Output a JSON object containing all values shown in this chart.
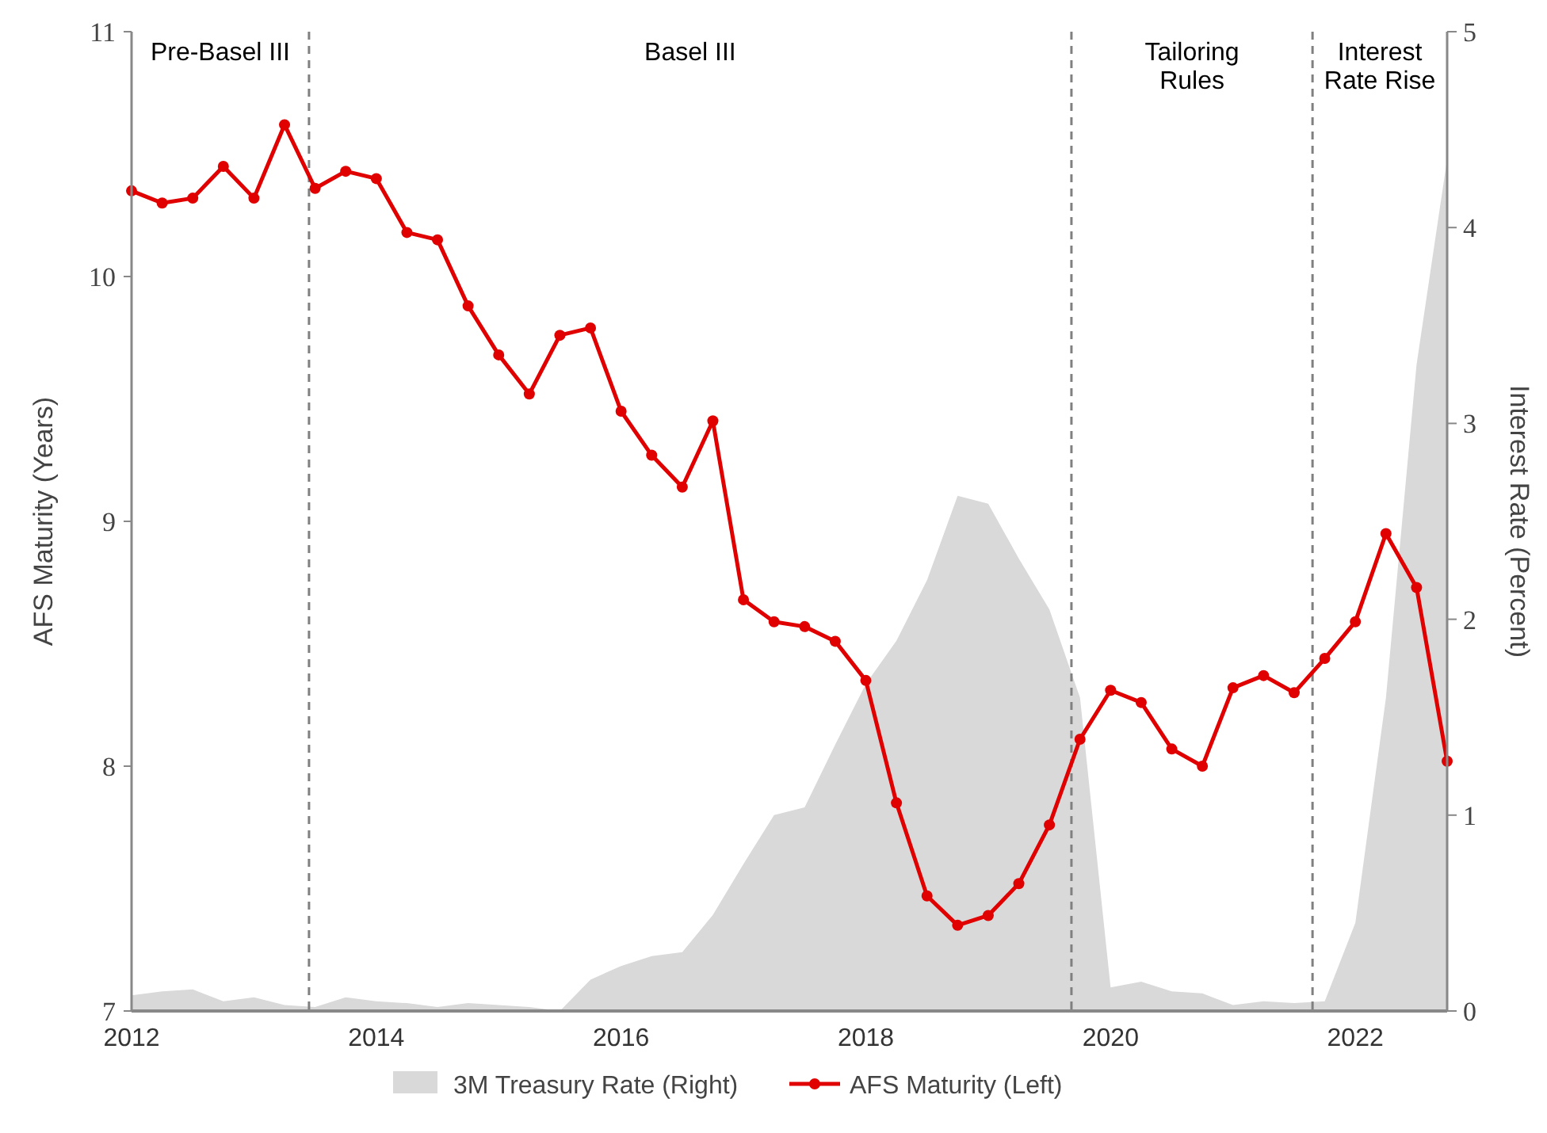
{
  "chart_data": {
    "type": "line",
    "ylabel": "AFS Maturity (Years)",
    "y2label": "Interest Rate (Percent)",
    "x": [
      2012,
      2012.25,
      2012.5,
      2012.75,
      2013,
      2013.25,
      2013.5,
      2013.75,
      2014,
      2014.25,
      2014.5,
      2014.75,
      2015,
      2015.25,
      2015.5,
      2015.75,
      2016,
      2016.25,
      2016.5,
      2016.75,
      2017,
      2017.25,
      2017.5,
      2017.75,
      2018,
      2018.25,
      2018.5,
      2018.75,
      2019,
      2019.25,
      2019.5,
      2019.75,
      2020,
      2020.25,
      2020.5,
      2020.75,
      2021,
      2021.25,
      2021.5,
      2021.75,
      2022,
      2022.25,
      2022.5,
      2022.75
    ],
    "series": [
      {
        "name": "3M Treasury Rate (Right)",
        "type": "area",
        "axis": "y2",
        "color": "#d9d9d9",
        "values": [
          0.08,
          0.1,
          0.11,
          0.05,
          0.07,
          0.03,
          0.02,
          0.07,
          0.05,
          0.04,
          0.02,
          0.04,
          0.03,
          0.02,
          0.0,
          0.16,
          0.23,
          0.28,
          0.3,
          0.49,
          0.75,
          1.0,
          1.04,
          1.36,
          1.67,
          1.89,
          2.2,
          2.63,
          2.59,
          2.31,
          2.05,
          1.6,
          0.12,
          0.15,
          0.1,
          0.09,
          0.03,
          0.05,
          0.04,
          0.05,
          0.45,
          1.6,
          3.3,
          4.35
        ]
      },
      {
        "name": "AFS Maturity (Left)",
        "axis": "y",
        "color": "#e00000",
        "marker": "circle",
        "values": [
          10.35,
          10.3,
          10.32,
          10.45,
          10.32,
          10.62,
          10.36,
          10.43,
          10.4,
          10.18,
          10.15,
          9.88,
          9.68,
          9.52,
          9.76,
          9.79,
          9.45,
          9.27,
          9.14,
          9.41,
          8.68,
          8.59,
          8.57,
          8.51,
          8.35,
          7.85,
          7.47,
          7.35,
          7.39,
          7.52,
          7.76,
          8.11,
          8.31,
          8.26,
          8.07,
          8.0,
          8.32,
          8.37,
          8.3,
          8.44,
          8.59,
          8.95,
          8.73,
          8.02
        ]
      }
    ],
    "xlim": [
      2012,
      2022.75
    ],
    "xticks": [
      2012,
      2014,
      2016,
      2018,
      2020,
      2022
    ],
    "ylim": [
      7,
      11
    ],
    "yticks": [
      7,
      8,
      9,
      10,
      11
    ],
    "y2lim": [
      0,
      5
    ],
    "y2ticks": [
      0,
      1,
      2,
      3,
      4,
      5
    ],
    "ref_lines": [
      {
        "axis": "x",
        "value": 2013.45,
        "color": "#808080",
        "line_style": "dashed"
      },
      {
        "axis": "x",
        "value": 2019.68,
        "color": "#808080",
        "line_style": "dashed"
      },
      {
        "axis": "x",
        "value": 2021.65,
        "color": "#808080",
        "line_style": "dashed"
      }
    ],
    "annotations": [
      "Pre-Basel III",
      "Basel III",
      "Tailoring\nRules",
      "Interest\nRate Rise"
    ],
    "grid": false,
    "legend": "bottom"
  }
}
